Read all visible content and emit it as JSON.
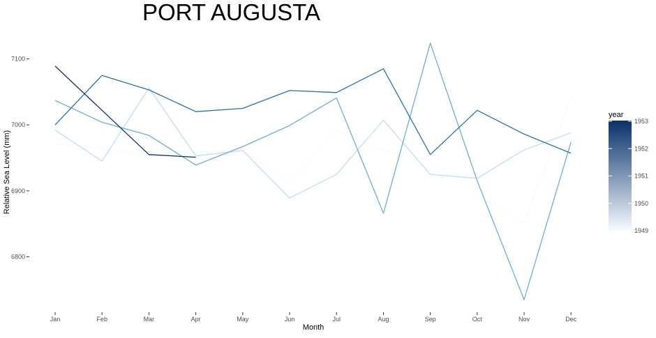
{
  "chart_data": {
    "type": "line",
    "title": "PORT AUGUSTA",
    "xlabel": "Month",
    "ylabel": "Relative Sea Level (mm)",
    "categories": [
      "Jan",
      "Feb",
      "Mar",
      "Apr",
      "May",
      "Jun",
      "Jul",
      "Aug",
      "Sep",
      "Oct",
      "Nov",
      "Dec"
    ],
    "ylim": [
      6715,
      7140
    ],
    "yticks": [
      6800,
      6900,
      7000,
      7100
    ],
    "ytick_labels": [
      "6800",
      "6900",
      "7000",
      "7100"
    ],
    "grid": false,
    "legend_position": "right",
    "legend": {
      "title": "year",
      "type": "colorbar",
      "range": [
        1949,
        1953
      ],
      "ticks": [
        1949,
        1950,
        1951,
        1952,
        1953
      ],
      "tick_labels": [
        "1949",
        "1950",
        "1951",
        "1952",
        "1953"
      ],
      "color_low": "#f7fbff",
      "color_high": "#08306b"
    },
    "series": [
      {
        "year": 1949,
        "color": "#f7fbff",
        "values": [
          6972,
          6963,
          6956,
          6959,
          6962,
          6912,
          6992,
          6962,
          6945,
          6893,
          6852,
          7042
        ]
      },
      {
        "year": 1950,
        "color": "#c6dbef",
        "values": [
          6992,
          6945,
          7056,
          6953,
          6961,
          6889,
          6925,
          7007,
          6925,
          6919,
          6962,
          6988
        ]
      },
      {
        "year": 1951,
        "color": "#6baed6",
        "values": [
          7037,
          7004,
          6984,
          6939,
          6967,
          6999,
          7041,
          6866,
          7124,
          6915,
          6735,
          6974
        ]
      },
      {
        "year": 1952,
        "color": "#2171b5",
        "values": [
          7000,
          7075,
          7053,
          7020,
          7025,
          7052,
          7049,
          7085,
          6955,
          7022,
          6986,
          6957
        ]
      },
      {
        "year": 1953,
        "color": "#08306b",
        "values": [
          7089,
          7022,
          6955,
          6951,
          null,
          null,
          null,
          null,
          null,
          null,
          null,
          null
        ]
      }
    ]
  }
}
